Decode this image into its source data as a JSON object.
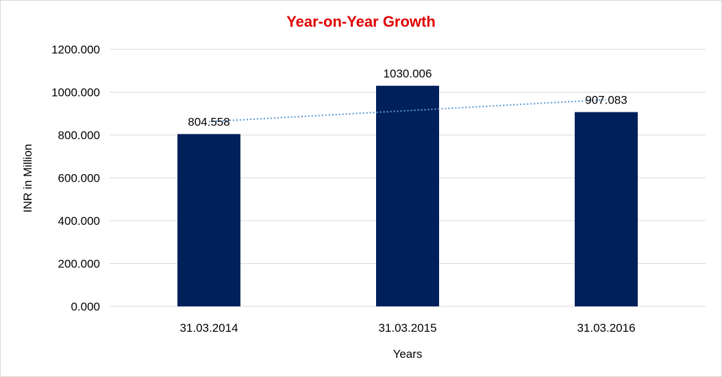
{
  "colors": {
    "title": "#e00000",
    "bar": "#00205b",
    "trendline": "#5b9bd5",
    "gridline": "#d9d9d9"
  },
  "chart_data": {
    "type": "bar",
    "title": "Year-on-Year Growth",
    "xlabel": "Years",
    "ylabel": "INR in Million",
    "categories": [
      "31.03.2014",
      "31.03.2015",
      "31.03.2016"
    ],
    "values": [
      804.558,
      1030.006,
      907.083
    ],
    "data_labels": [
      "804.558",
      "1030.006",
      "907.083"
    ],
    "ylim": [
      0,
      1200
    ],
    "yticks": [
      0,
      200,
      400,
      600,
      800,
      1000,
      1200
    ],
    "ytick_labels": [
      "0.000",
      "200.000",
      "400.000",
      "600.000",
      "800.000",
      "1000.000",
      "1200.000"
    ],
    "grid": true,
    "trendline": {
      "type": "linear",
      "style": "dotted"
    },
    "legend": "none"
  }
}
